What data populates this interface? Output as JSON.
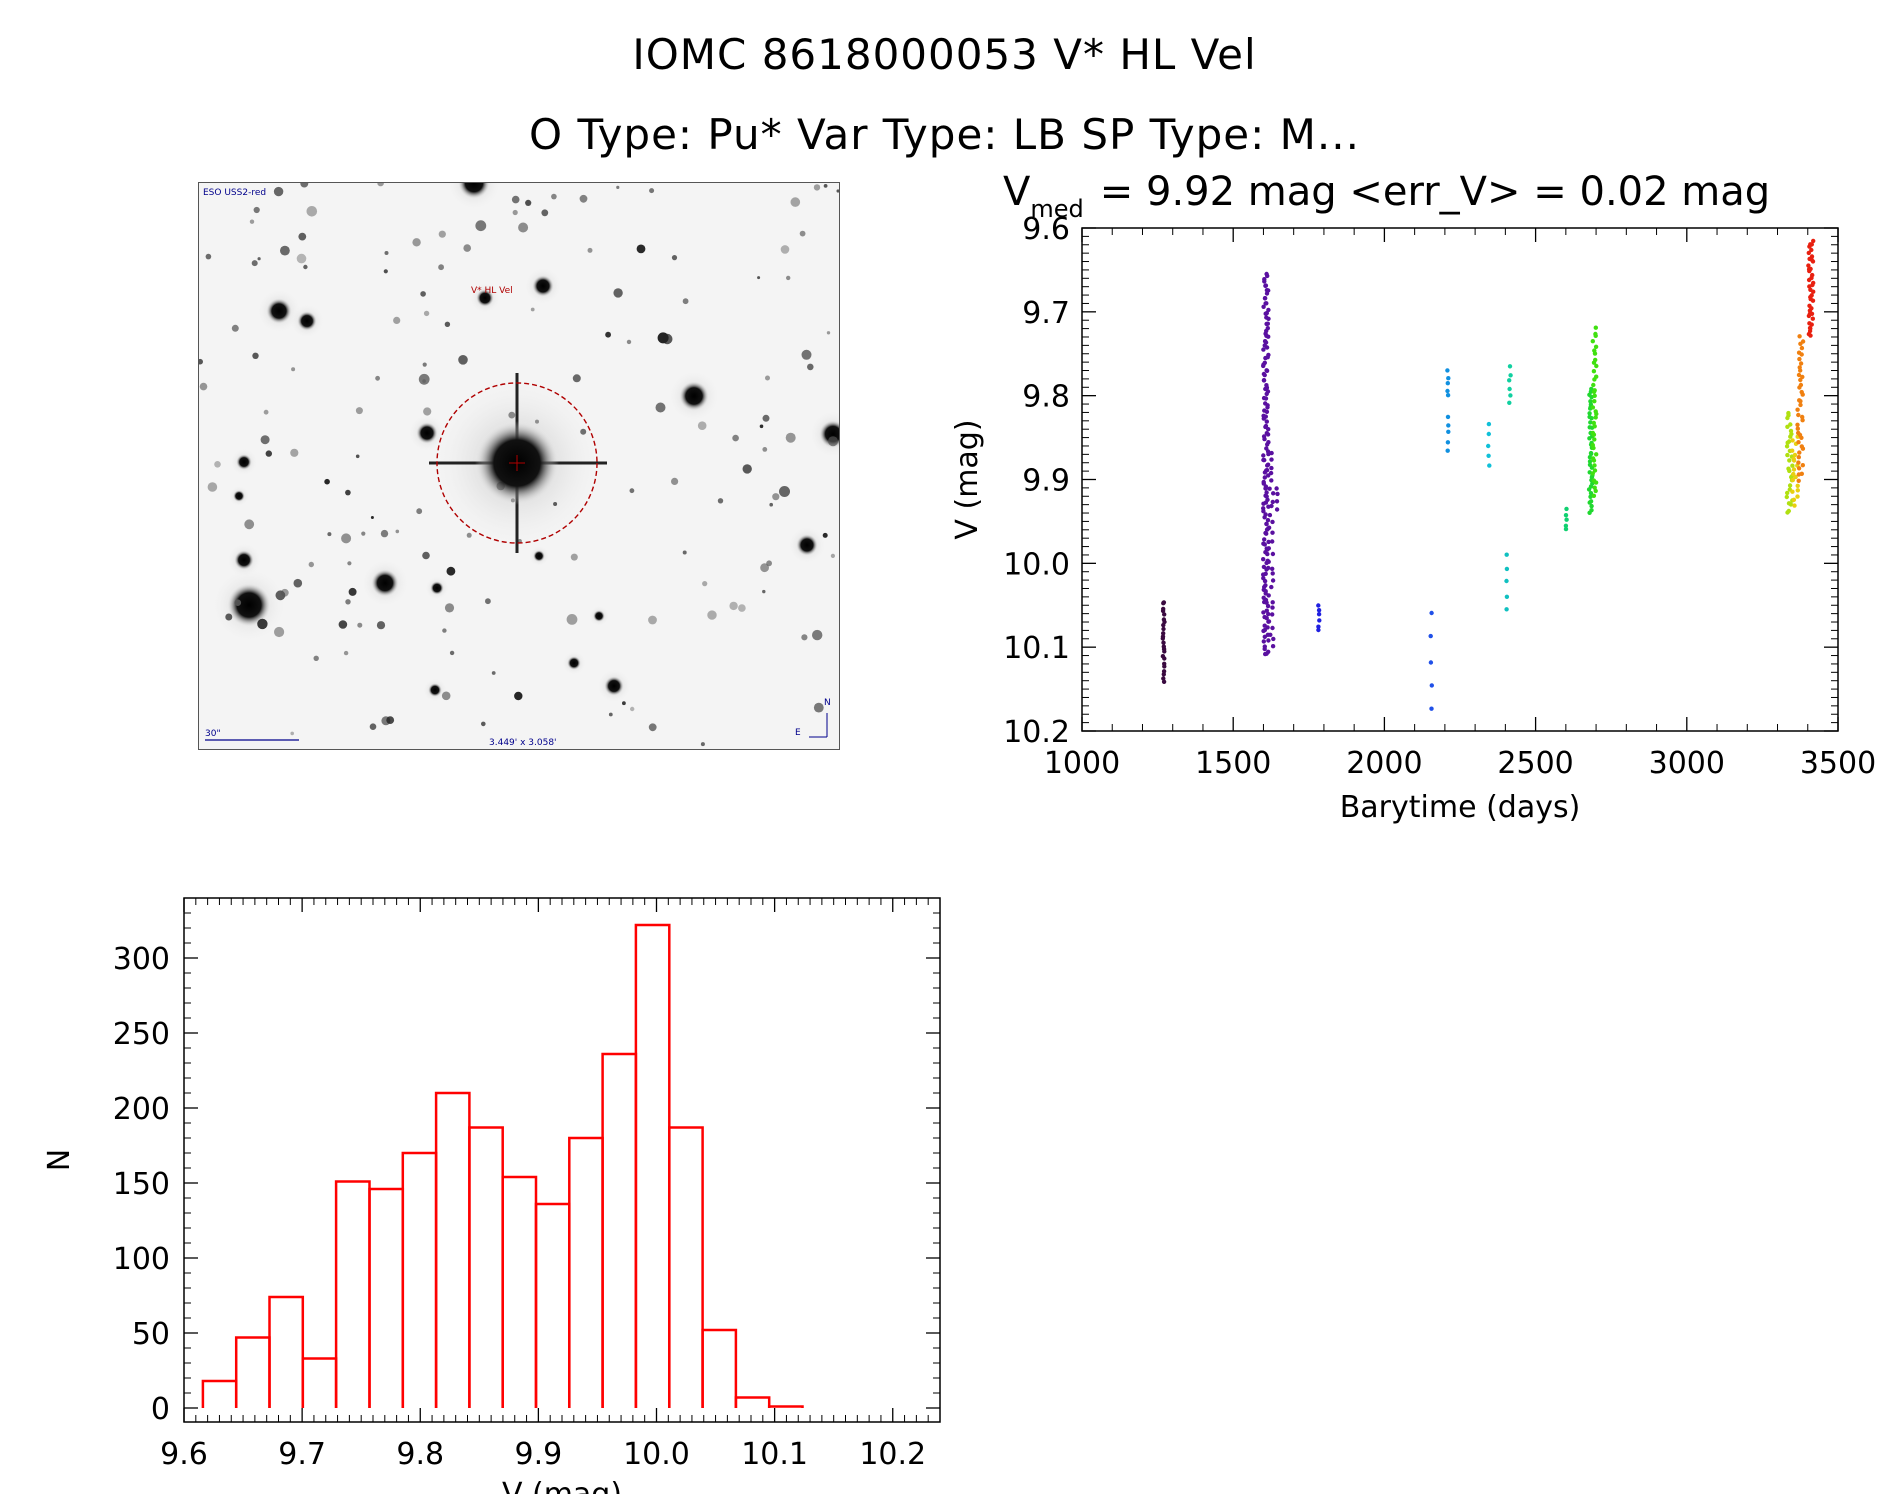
{
  "header": {
    "title_line1": "IOMC 8618000053    V* HL Vel",
    "title_line2": "O Type: Pu*  Var Type: LB  SP Type: M..."
  },
  "thumbnail": {
    "survey_label": "ESO USS2-red",
    "target_label": "V* HL Vel",
    "scale_label": "30\"",
    "fov_label": "3.449' x 3.058'",
    "north_label": "N",
    "east_label": "E",
    "label_color": "#00008b",
    "target_color": "#b00000"
  },
  "chart_data": [
    {
      "type": "scatter",
      "title_prefix": "V",
      "title_subscript": "med",
      "title_rest": "= 9.92 mag <err_V> = 0.02 mag",
      "xlabel": "Barytime (days)",
      "ylabel": "V (mag)",
      "xlim": [
        1000,
        3500
      ],
      "ylim": [
        10.2,
        9.6
      ],
      "xticks": [
        1000,
        1500,
        2000,
        2500,
        3000,
        3500
      ],
      "yticks": [
        9.6,
        9.7,
        9.8,
        9.9,
        10.0,
        10.1,
        10.2
      ],
      "ytick_labels": [
        "9.6",
        "9.7",
        "9.8",
        "9.9",
        "10.0",
        "10.1",
        "10.2"
      ],
      "groups": [
        {
          "x": 1270,
          "x_spread": 3,
          "ymin": 10.045,
          "ymax": 10.14,
          "n": 24,
          "color": "#3a0a40"
        },
        {
          "x": 1608,
          "x_spread": 9,
          "ymin": 9.655,
          "ymax": 10.11,
          "n": 150,
          "color": "#5a10a0"
        },
        {
          "x": 1625,
          "x_spread": 8,
          "ymin": 9.87,
          "ymax": 10.1,
          "n": 30,
          "color": "#5a10a0"
        },
        {
          "x": 1645,
          "x_spread": 2,
          "ymin": 9.91,
          "ymax": 9.935,
          "n": 4,
          "color": "#5a10a0"
        },
        {
          "x": 1783,
          "x_spread": 2,
          "ymin": 10.05,
          "ymax": 10.08,
          "n": 6,
          "color": "#2020e0"
        },
        {
          "x": 2155,
          "x_spread": 2,
          "ymin": 10.06,
          "ymax": 10.175,
          "n": 5,
          "color": "#2050e8"
        },
        {
          "x": 2210,
          "x_spread": 2,
          "ymin": 9.77,
          "ymax": 9.8,
          "n": 5,
          "color": "#1090e0"
        },
        {
          "x": 2210,
          "x_spread": 2,
          "ymin": 9.825,
          "ymax": 9.865,
          "n": 5,
          "color": "#1090e0"
        },
        {
          "x": 2345,
          "x_spread": 2,
          "ymin": 9.835,
          "ymax": 9.885,
          "n": 5,
          "color": "#10c0d8"
        },
        {
          "x": 2405,
          "x_spread": 2,
          "ymin": 9.99,
          "ymax": 10.055,
          "n": 5,
          "color": "#10c0c0"
        },
        {
          "x": 2415,
          "x_spread": 3,
          "ymin": 9.765,
          "ymax": 9.81,
          "n": 6,
          "color": "#10d0a0"
        },
        {
          "x": 2600,
          "x_spread": 3,
          "ymin": 9.935,
          "ymax": 9.96,
          "n": 5,
          "color": "#10d070"
        },
        {
          "x": 2682,
          "x_spread": 6,
          "ymin": 9.79,
          "ymax": 9.94,
          "n": 40,
          "color": "#20d830"
        },
        {
          "x": 2695,
          "x_spread": 6,
          "ymin": 9.72,
          "ymax": 9.92,
          "n": 40,
          "color": "#40e010"
        },
        {
          "x": 3340,
          "x_spread": 10,
          "ymin": 9.82,
          "ymax": 9.94,
          "n": 30,
          "color": "#b0e010"
        },
        {
          "x": 3358,
          "x_spread": 10,
          "ymin": 9.85,
          "ymax": 9.93,
          "n": 18,
          "color": "#e8d010"
        },
        {
          "x": 3375,
          "x_spread": 10,
          "ymin": 9.73,
          "ymax": 9.9,
          "n": 40,
          "color": "#f08010"
        },
        {
          "x": 3410,
          "x_spread": 8,
          "ymin": 9.615,
          "ymax": 9.73,
          "n": 40,
          "color": "#e82010"
        }
      ]
    },
    {
      "type": "bar",
      "subtype": "histogram",
      "xlabel": "V (mag)",
      "ylabel": "N",
      "xlim": [
        9.6,
        10.24
      ],
      "ylim": [
        0,
        340
      ],
      "xticks": [
        9.6,
        9.7,
        9.8,
        9.9,
        10.0,
        10.1,
        10.2
      ],
      "xtick_labels": [
        "9.6",
        "9.7",
        "9.8",
        "9.9",
        "10.0",
        "10.1",
        "10.2"
      ],
      "yticks": [
        0,
        50,
        100,
        150,
        200,
        250,
        300
      ],
      "ytick_labels": [
        "0",
        "50",
        "100",
        "150",
        "200",
        "250",
        "300"
      ],
      "bin_start": 9.616,
      "bin_width": 0.0282,
      "values": [
        18,
        47,
        74,
        33,
        151,
        146,
        170,
        210,
        187,
        154,
        136,
        180,
        236,
        322,
        187,
        52,
        7,
        1
      ],
      "color": "#ff0000"
    }
  ]
}
